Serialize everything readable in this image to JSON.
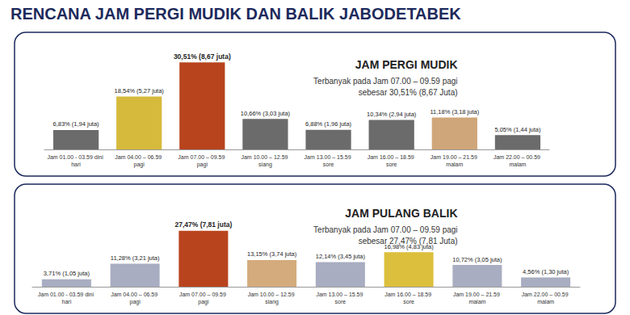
{
  "header": {
    "title": "RENCANA JAM PERGI MUDIK DAN BALIK JABODETABEK"
  },
  "chart_data": [
    {
      "type": "bar",
      "title": "JAM PERGI MUDIK",
      "subtitle": "Terbanyak pada Jam 07.00 – 09.59 pagi\nsebesar 30,51% (8,67 Juta)",
      "categories": [
        "Jam 01.00 - 03.59 dini hari",
        "Jam 04.00 – 06.59 pagi",
        "Jam 07.00 – 09.59 pagi",
        "Jam 10.00 – 12.59 siang",
        "Jam 13.00 – 15.59 sore",
        "Jam 16.00 – 18.59 sore",
        "Jam 19.00 – 21.59 malam",
        "Jam 22.00 – 00.59 malam"
      ],
      "values": [
        6.83,
        18.54,
        30.51,
        10.66,
        6.88,
        10.34,
        11.18,
        5.05
      ],
      "value_labels": [
        "6,83% (1,94 juta)",
        "18,54% (5,27 juta)",
        "30,51% (8,67 juta)",
        "10,66% (3,03 juta)",
        "6,88% (1,96 juta)",
        "10,34% (2,94 juta)",
        "11,18% (3,18 juta)",
        "5,05% (1,44 juta)"
      ],
      "colors": [
        "#6b6b6b",
        "#d6ba3c",
        "#b8441d",
        "#6b6b6b",
        "#6b6b6b",
        "#6b6b6b",
        "#cfa679",
        "#6b6b6b"
      ],
      "ylim": [
        0,
        32
      ],
      "data_labels": true,
      "tick_labels": "x",
      "grid": false
    },
    {
      "type": "bar",
      "title": "JAM PULANG BALIK",
      "subtitle": "Terbanyak pada Jam 07.00 – 09.59 pagi\nsebesar 27,47% (7,81 Juta)",
      "categories": [
        "Jam 01.00 - 03.59 dini hari",
        "Jam 04.00 – 06.59 pagi",
        "Jam 07.00 – 09.59 pagi",
        "Jam 10.00 – 12.59 siang",
        "Jam 13.00 – 15.59 sore",
        "Jam 16.00 – 18.59 sore",
        "Jam 19.00 – 21.59 malam",
        "Jam 22.00 – 00.59 malam"
      ],
      "values": [
        3.71,
        11.28,
        27.47,
        13.15,
        12.14,
        16.98,
        10.72,
        4.56
      ],
      "value_labels": [
        "3,71% (1,05 juta)",
        "11,28% (3,21 juta)",
        "27,47% (7,81 juta)",
        "13,15% (3,74 juta)",
        "12,14% (3,45 juta)",
        "16,98% (4,83 juta)",
        "10,72% (3,05 juta)",
        "4,56% (1,30 juta)"
      ],
      "colors": [
        "#a9adc1",
        "#a9adc1",
        "#b8441d",
        "#d4ab7c",
        "#a9adc1",
        "#dcbf3c",
        "#a9adc1",
        "#a9adc1"
      ],
      "ylim": [
        0,
        29
      ],
      "data_labels": true,
      "tick_labels": "x",
      "grid": false
    }
  ]
}
